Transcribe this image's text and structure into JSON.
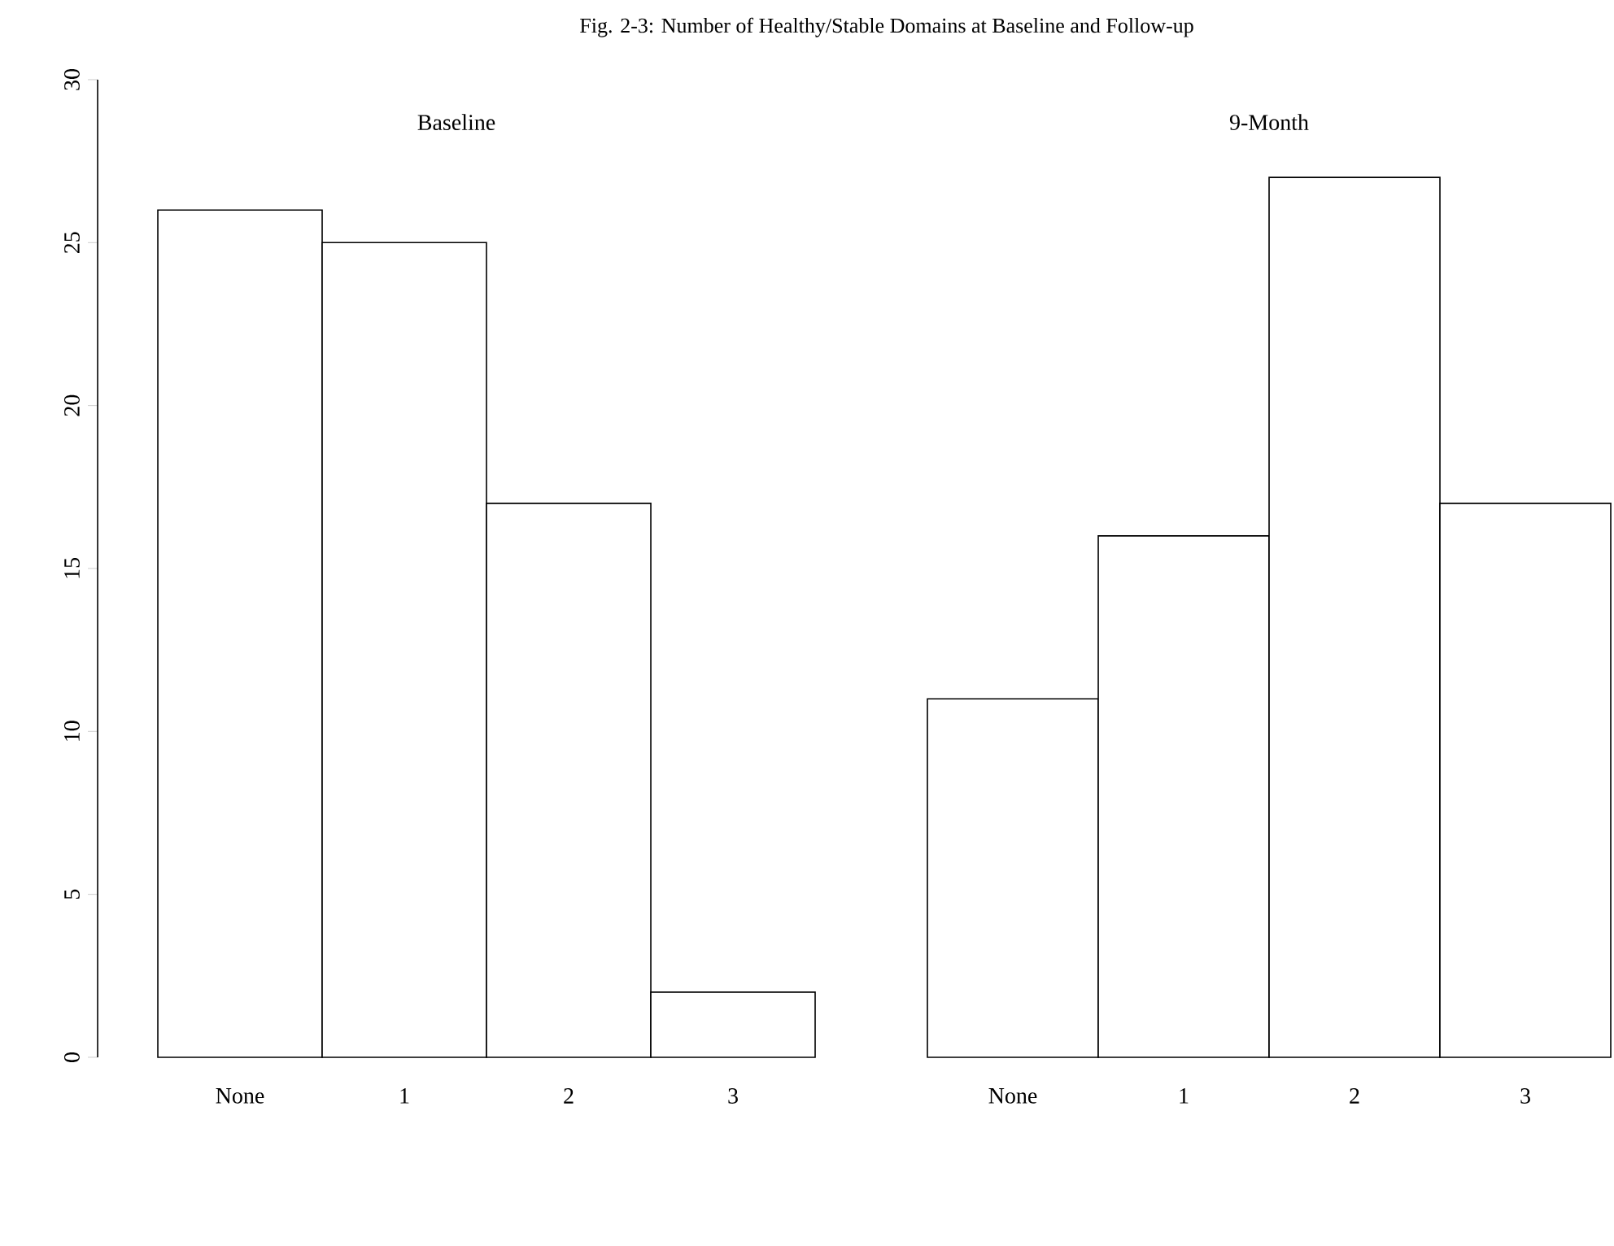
{
  "chart_data": [
    {
      "type": "bar",
      "title": "Fig. 2-3: Number of Healthy/Stable Domains at Baseline and Follow-up",
      "subtitle": "Baseline",
      "categories": [
        "None",
        "1",
        "2",
        "3"
      ],
      "values": [
        26,
        25,
        17,
        2
      ],
      "color": "#ffffff",
      "ylim": [
        0,
        30
      ],
      "yticks": [
        0,
        5,
        10,
        15,
        20,
        25,
        30
      ]
    },
    {
      "type": "bar",
      "subtitle": "9-Month",
      "categories": [
        "None",
        "1",
        "2",
        "3"
      ],
      "values": [
        11,
        16,
        27,
        17
      ],
      "color": "#ffffff",
      "ylim": [
        0,
        30
      ],
      "tick_labels": "x"
    }
  ]
}
